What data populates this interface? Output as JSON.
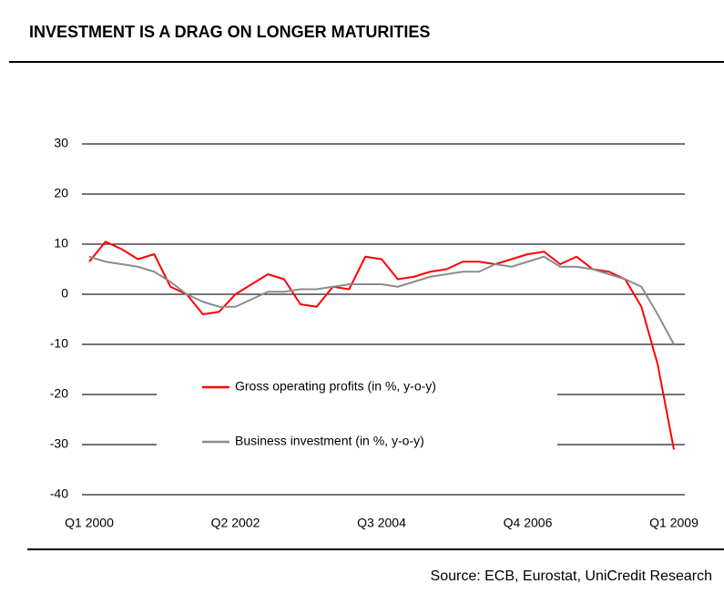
{
  "chart_data": {
    "type": "line",
    "title": "INVESTMENT IS A DRAG ON LONGER MATURITIES",
    "source": "Source: ECB, Eurostat, UniCredit Research",
    "categories": [
      "Q1 2000",
      null,
      null,
      null,
      null,
      null,
      null,
      null,
      null,
      "Q2 2002",
      null,
      null,
      null,
      null,
      null,
      null,
      null,
      null,
      "Q3 2004",
      null,
      null,
      null,
      null,
      null,
      null,
      null,
      null,
      "Q4 2006",
      null,
      null,
      null,
      null,
      null,
      null,
      null,
      null,
      "Q1 2009"
    ],
    "series": [
      {
        "name": "Gross operating profits (in %, y-o-y)",
        "color": "#ff0000",
        "values": [
          6.5,
          10.5,
          9,
          7,
          8,
          1.5,
          0,
          -4,
          -3.5,
          0,
          2,
          4,
          3,
          -2,
          -2.5,
          1.5,
          1,
          7.5,
          7,
          3,
          3.5,
          4.5,
          5,
          6.5,
          6.5,
          6,
          7,
          8,
          8.5,
          6,
          7.5,
          5,
          4.5,
          3,
          -2.5,
          -14,
          -31
        ]
      },
      {
        "name": "Business investment (in %, y-o-y)",
        "color": "#8c8c8c",
        "values": [
          7.5,
          6.5,
          6,
          5.5,
          4.5,
          2.5,
          0,
          -1.5,
          -2.5,
          -2.5,
          -1,
          0.5,
          0.5,
          1,
          1,
          1.5,
          2,
          2,
          2,
          1.5,
          2.5,
          3.5,
          4,
          4.5,
          4.5,
          6,
          5.5,
          6.5,
          7.5,
          5.5,
          5.5,
          5,
          4,
          3,
          1.5,
          -4,
          -10
        ]
      }
    ],
    "ylim": [
      -40,
      30
    ],
    "yticks": [
      -40,
      -30,
      -20,
      -10,
      0,
      10,
      20,
      30
    ],
    "grid": true
  }
}
